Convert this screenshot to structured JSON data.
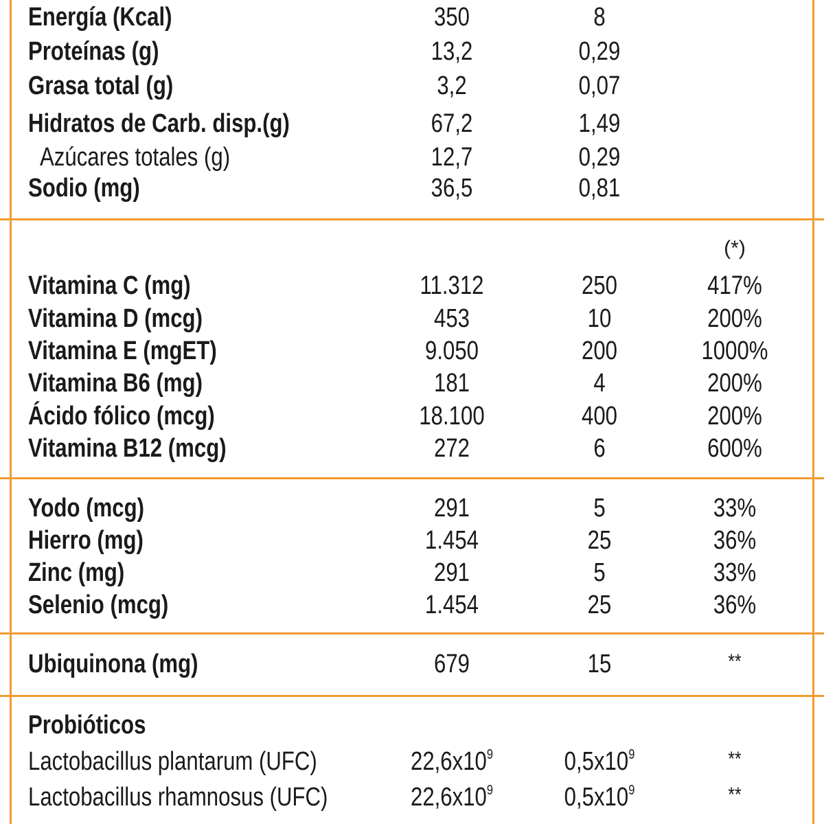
{
  "colors": {
    "border": "#f29a30",
    "text": "#1a1a1a"
  },
  "macros": [
    {
      "label": "Energía (Kcal)",
      "v1": "350",
      "v2": "8"
    },
    {
      "label": "Proteínas (g)",
      "v1": "13,2",
      "v2": "0,29"
    },
    {
      "label": "Grasa total (g)",
      "v1": "3,2",
      "v2": "0,07"
    },
    {
      "label": "Hidratos de Carb. disp.(g)",
      "v1": "67,2",
      "v2": "1,49"
    },
    {
      "label": "Azúcares totales (g)",
      "v1": "12,7",
      "v2": "0,29"
    },
    {
      "label": "Sodio (mg)",
      "v1": "36,5",
      "v2": "0,81"
    }
  ],
  "vitamins_note": "(*)",
  "vitamins": [
    {
      "label": "Vitamina C (mg)",
      "v1": "11.312",
      "v2": "250",
      "v3": "417%"
    },
    {
      "label": "Vitamina D (mcg)",
      "v1": "453",
      "v2": "10",
      "v3": "200%"
    },
    {
      "label": "Vitamina E (mgET)",
      "v1": "9.050",
      "v2": "200",
      "v3": "1000%"
    },
    {
      "label": "Vitamina B6 (mg)",
      "v1": "181",
      "v2": "4",
      "v3": "200%"
    },
    {
      "label": "Ácido fólico (mcg)",
      "v1": "18.100",
      "v2": "400",
      "v3": "200%"
    },
    {
      "label": "Vitamina B12 (mcg)",
      "v1": "272",
      "v2": "6",
      "v3": "600%"
    }
  ],
  "minerals": [
    {
      "label": "Yodo (mcg)",
      "v1": "291",
      "v2": "5",
      "v3": "33%"
    },
    {
      "label": "Hierro (mg)",
      "v1": "1.454",
      "v2": "25",
      "v3": "36%"
    },
    {
      "label": "Zinc (mg)",
      "v1": "291",
      "v2": "5",
      "v3": "33%"
    },
    {
      "label": "Selenio (mcg)",
      "v1": "1.454",
      "v2": "25",
      "v3": "36%"
    }
  ],
  "ubiquinona": {
    "label": "Ubiquinona (mg)",
    "v1": "679",
    "v2": "15",
    "v3": "**"
  },
  "probiotics": {
    "heading": "Probióticos",
    "items": [
      {
        "label": "Lactobacillus plantarum (UFC)",
        "v1_base": "22,6x10",
        "v1_exp": "9",
        "v2_base": "0,5x10",
        "v2_exp": "9",
        "v3": "**"
      },
      {
        "label": "Lactobacillus rhamnosus (UFC)",
        "v1_base": "22,6x10",
        "v1_exp": "9",
        "v2_base": "0,5x10",
        "v2_exp": "9",
        "v3": "**"
      }
    ]
  }
}
